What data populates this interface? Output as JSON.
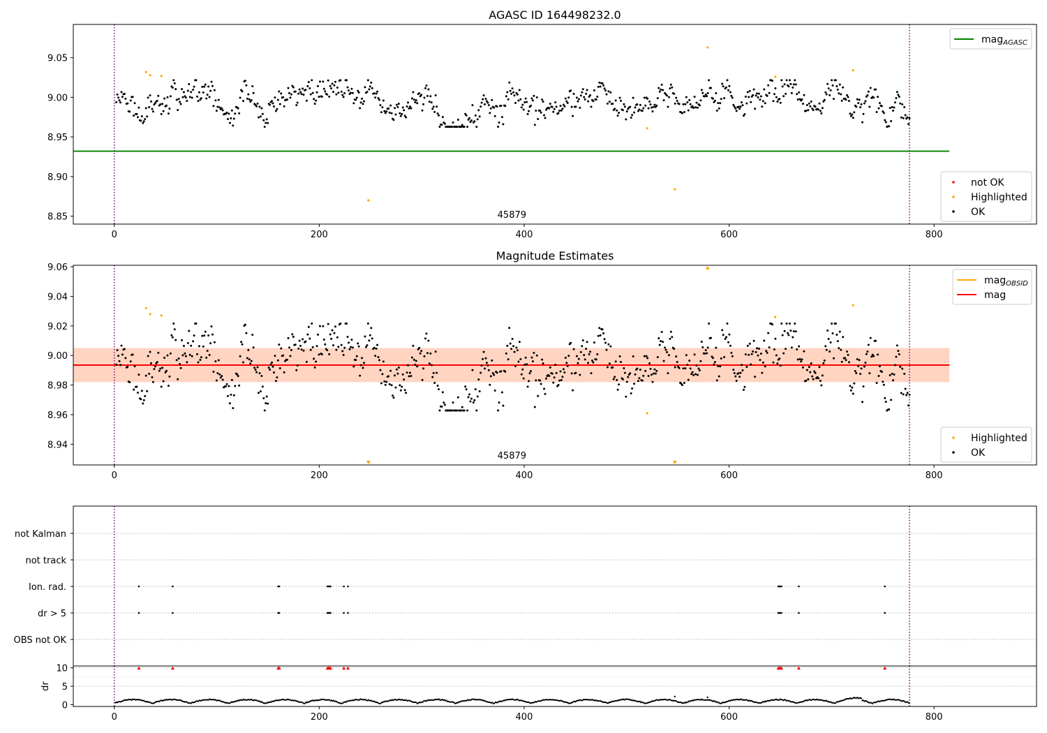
{
  "chart_data": [
    {
      "type": "scatter",
      "title": "AGASC ID 164498232.0",
      "xlabel": "",
      "ylabel": "",
      "xlim": [
        -40,
        900
      ],
      "ylim": [
        8.84,
        9.092
      ],
      "xticks": [
        0,
        200,
        400,
        600,
        800
      ],
      "yticks": [
        8.85,
        8.9,
        8.95,
        9.0,
        9.05
      ],
      "ytick_labels": [
        "8.85",
        "8.90",
        "8.95",
        "9.00",
        "9.05"
      ],
      "obsid_label": {
        "text": "45879",
        "x": 388
      },
      "vlines": [
        0,
        776
      ],
      "reference_line": {
        "name": "mag_AGASC",
        "y": 8.932,
        "x": [
          -40,
          815
        ],
        "color": "#008000"
      },
      "legend": {
        "top": [
          {
            "label": "mag",
            "sub": "AGASC",
            "color": "#008000"
          }
        ],
        "bottom": [
          {
            "label": "not OK",
            "color": "#ff0000"
          },
          {
            "label": "Highlighted",
            "color": "#ffa500"
          },
          {
            "label": "OK",
            "color": "#000000"
          }
        ]
      },
      "highlighted": [
        [
          31,
          9.032
        ],
        [
          35,
          9.028
        ],
        [
          46,
          9.027
        ],
        [
          248,
          8.87
        ],
        [
          520,
          8.961
        ],
        [
          547,
          8.884
        ],
        [
          579,
          9.063
        ],
        [
          645,
          9.026
        ],
        [
          721,
          9.034
        ]
      ],
      "ok_series": {
        "n": 776,
        "x_start": 2,
        "x_end": 776,
        "mean": 8.994,
        "std": 0.012
      }
    },
    {
      "type": "scatter",
      "title": "Magnitude Estimates",
      "xlabel": "",
      "ylabel": "",
      "xlim": [
        -40,
        900
      ],
      "ylim": [
        8.926,
        9.061
      ],
      "xticks": [
        0,
        200,
        400,
        600,
        800
      ],
      "yticks": [
        8.94,
        8.96,
        8.98,
        9.0,
        9.02,
        9.04,
        9.06
      ],
      "ytick_labels": [
        "8.94",
        "8.96",
        "8.98",
        "9.00",
        "9.02",
        "9.04",
        "9.06"
      ],
      "obsid_label": {
        "text": "45879",
        "x": 388
      },
      "vlines": [
        0,
        776
      ],
      "mag_line": {
        "name": "mag",
        "y": 8.9935,
        "x": [
          -40,
          815
        ],
        "color": "#ff0000"
      },
      "mag_obsid_line": {
        "name": "mag_OBSID",
        "y": 8.9935,
        "x": [
          -40,
          815
        ],
        "color": "#ffa500"
      },
      "band_outer": [
        8.982,
        9.005
      ],
      "band_inner": [
        8.982,
        9.005
      ],
      "legend": {
        "top": [
          {
            "label": "mag",
            "sub": "OBSID",
            "color": "#ffa500"
          },
          {
            "label": "mag",
            "sub": "",
            "color": "#ff0000"
          }
        ],
        "bottom": [
          {
            "label": "Highlighted",
            "color": "#ffa500"
          },
          {
            "label": "OK",
            "color": "#000000"
          }
        ]
      },
      "highlighted": [
        [
          31,
          9.032
        ],
        [
          35,
          9.028
        ],
        [
          46,
          9.027
        ],
        [
          520,
          8.961
        ],
        [
          645,
          9.026
        ],
        [
          721,
          9.034
        ]
      ],
      "offscale_markers": [
        {
          "x": 579,
          "dir": "up"
        },
        {
          "x": 248,
          "dir": "down"
        },
        {
          "x": 547,
          "dir": "down"
        }
      ],
      "ok_series": {
        "n": 776,
        "x_start": 2,
        "x_end": 776,
        "mean": 8.994,
        "std": 0.012
      }
    },
    {
      "type": "scatter",
      "title": "",
      "xlabel": "",
      "ylabel": "",
      "xlim": [
        -40,
        900
      ],
      "categories": [
        "not Kalman",
        "not track",
        "Ion. rad.",
        "dr > 5",
        "OBS not OK"
      ],
      "vlines": [
        0,
        776
      ],
      "flag_points": {
        "Ion. rad.": [
          24,
          57,
          160,
          161,
          208,
          209,
          210,
          211,
          224,
          228,
          648,
          649,
          650,
          651,
          668,
          752
        ],
        "dr > 5": [
          24,
          57,
          160,
          161,
          208,
          209,
          210,
          211,
          224,
          228,
          648,
          649,
          650,
          651,
          668,
          752
        ]
      }
    },
    {
      "type": "scatter",
      "title": "",
      "xlabel": "",
      "ylabel": "dr",
      "xlim": [
        -40,
        900
      ],
      "ylim": [
        -0.5,
        10.5
      ],
      "xticks": [
        0,
        200,
        400,
        600,
        800
      ],
      "yticks": [
        0,
        5,
        10
      ],
      "ytick_labels": [
        "0",
        "5",
        "10"
      ],
      "vlines": [
        0,
        776
      ],
      "capped_markers_at": 10,
      "capped_x": [
        24,
        57,
        160,
        161,
        208,
        209,
        210,
        211,
        224,
        228,
        648,
        649,
        650,
        651,
        668,
        752
      ],
      "outliers": [
        [
          547,
          2.2
        ],
        [
          579,
          2.0
        ]
      ],
      "series": {
        "n": 776,
        "x_start": 1,
        "x_end": 776,
        "typical_range": [
          0,
          2.2
        ]
      }
    }
  ],
  "colors": {
    "ok": "#000000",
    "highlighted": "#ffa500",
    "not_ok": "#ff0000",
    "vline": "#800080",
    "band_outer": "#ffdde0",
    "band_inner": "#ffd5c2"
  }
}
